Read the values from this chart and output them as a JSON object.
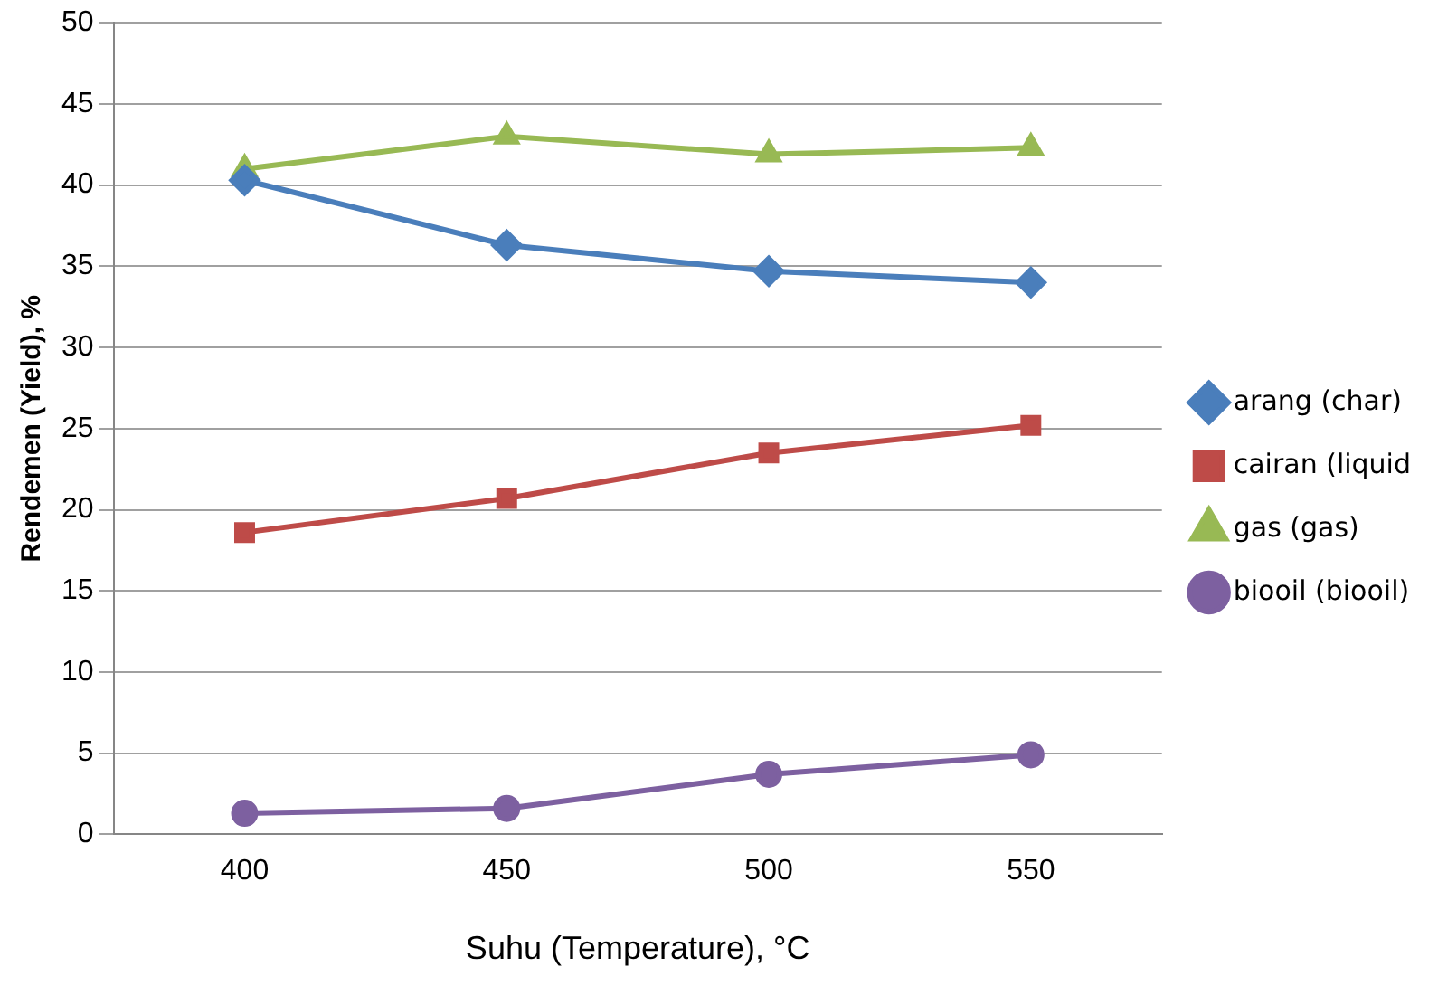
{
  "chart_data": {
    "type": "line",
    "xlabel": "Suhu (Temperature), °C",
    "ylabel": "Rendemen (Yield), %",
    "categories": [
      "400",
      "450",
      "500",
      "550"
    ],
    "series": [
      {
        "name": "arang (char)",
        "color": "#4a7ebb",
        "marker": "diamond",
        "values": [
          40.3,
          36.3,
          34.7,
          34.0
        ]
      },
      {
        "name": "cairan (liquid",
        "color": "#be4b48",
        "marker": "square",
        "values": [
          18.6,
          20.7,
          23.5,
          25.2
        ]
      },
      {
        "name": "gas (gas)",
        "color": "#98b954",
        "marker": "triangle",
        "values": [
          41.0,
          43.0,
          41.9,
          42.3
        ]
      },
      {
        "name": "biooil (biooil)",
        "color": "#7d60a0",
        "marker": "circle",
        "values": [
          1.3,
          1.6,
          3.7,
          4.9
        ]
      }
    ],
    "ylim": [
      0,
      50
    ],
    "yticks": [
      0,
      5,
      10,
      15,
      20,
      25,
      30,
      35,
      40,
      45,
      50
    ],
    "grid": "y",
    "legend": "right",
    "line_style": "solid"
  }
}
